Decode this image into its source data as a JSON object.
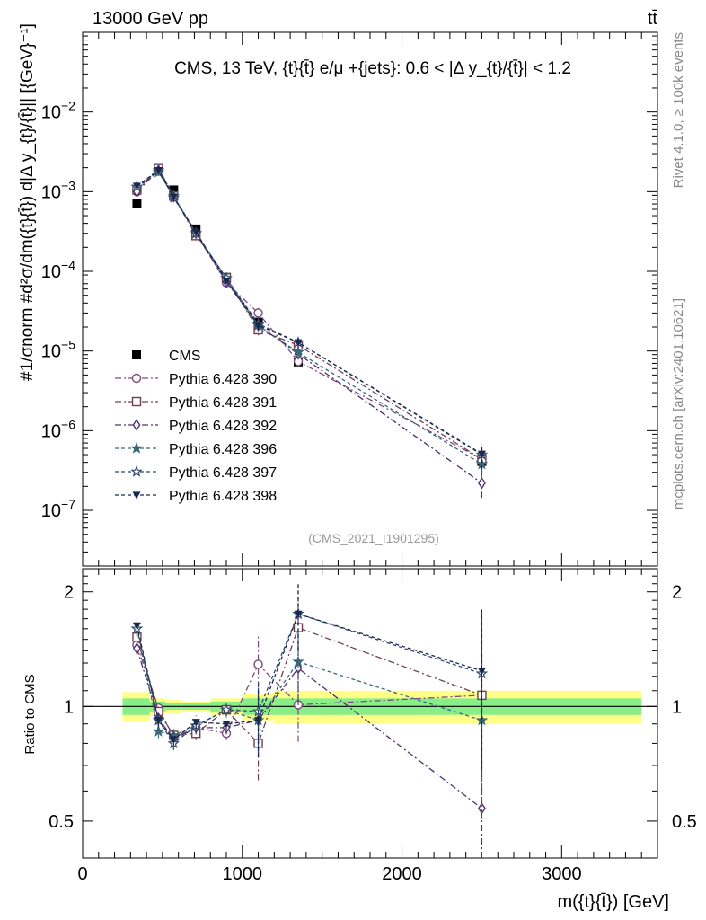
{
  "header": {
    "left": "13000 GeV pp",
    "right": "tt̄"
  },
  "side_labels": {
    "rivet": "Rivet 4.1.0, ≥ 100k events",
    "mcplots": "mcplots.cern.ch [arXiv:2401.10621]"
  },
  "chart_data": [
    {
      "type": "line",
      "title": "CMS, 13 TeV, {t}{t̄} e/μ +{jets}: 0.6 < |Δ y_{t}/{t̄}| < 1.2",
      "ylabel": "#1/σnorm #d²σ/dm({t}{t̄}) d|Δ y_{t}/{t̄}|| [{GeV}⁻¹]",
      "yscale": "log",
      "ylim": [
        2e-08,
        0.1
      ],
      "xlim": [
        0,
        3600
      ],
      "yticks": [
        {
          "v": 1e-07,
          "m": "10",
          "e": "−7"
        },
        {
          "v": 1e-06,
          "m": "10",
          "e": "−6"
        },
        {
          "v": 1e-05,
          "m": "10",
          "e": "−5"
        },
        {
          "v": 0.0001,
          "m": "10",
          "e": "−4"
        },
        {
          "v": 0.001,
          "m": "10",
          "e": "−3"
        },
        {
          "v": 0.01,
          "m": "10",
          "e": "−2"
        }
      ],
      "watermark": "(CMS_2021_I1901295)",
      "x": [
        340,
        475,
        570,
        710,
        900,
        1100,
        1350,
        2500
      ],
      "series": [
        {
          "name": "CMS",
          "color": "#000000",
          "marker": "square-filled",
          "dash": "",
          "values": [
            0.00072,
            0.002,
            0.00105,
            0.00034,
            8.4e-05,
            2.3e-05,
            7.3e-06,
            4.1e-07
          ]
        },
        {
          "name": "Pythia 6.428 390",
          "color": "#7a4a80",
          "marker": "circle-open",
          "dash": "7,3,2,3",
          "values": [
            0.001,
            0.002,
            0.00087,
            0.0003,
            7.2e-05,
            3e-05,
            7.4e-06,
            4.4e-07
          ]
        },
        {
          "name": "Pythia 6.428 391",
          "color": "#704050",
          "marker": "square-open",
          "dash": "7,3,2,3",
          "values": [
            0.00105,
            0.00195,
            0.00088,
            0.00028,
            8.3e-05,
            1.85e-05,
            1.18e-05,
            4.4e-07
          ]
        },
        {
          "name": "Pythia 6.428 392",
          "color": "#503070",
          "marker": "diamond-open",
          "dash": "7,3,2,3",
          "values": [
            0.001,
            0.00185,
            0.00086,
            0.0003,
            7.4e-05,
            2.1e-05,
            9.2e-06,
            2.2e-07
          ]
        },
        {
          "name": "Pythia 6.428 396",
          "color": "#3a6878",
          "marker": "star-filled",
          "dash": "4,3",
          "values": [
            0.00115,
            0.00175,
            0.00088,
            0.0003,
            8.2e-05,
            2.1e-05,
            9.6e-06,
            3.8e-07
          ]
        },
        {
          "name": "Pythia 6.428 397",
          "color": "#304868",
          "marker": "star-open",
          "dash": "4,3",
          "values": [
            0.00115,
            0.00185,
            0.00084,
            0.0003,
            8.2e-05,
            2.2e-05,
            1.28e-05,
            5e-07
          ]
        },
        {
          "name": "Pythia 6.428 398",
          "color": "#182850",
          "marker": "triangle-down-filled",
          "dash": "4,3",
          "values": [
            0.00118,
            0.00185,
            0.00086,
            0.00031,
            7.6e-05,
            2.1e-05,
            1.28e-05,
            5.1e-07
          ]
        }
      ]
    },
    {
      "type": "line",
      "ylabel": "Ratio to CMS",
      "yscale": "log",
      "ylim": [
        0.4,
        2.3
      ],
      "xlim": [
        0,
        3600
      ],
      "yticks": [
        {
          "v": 0.5,
          "label": "0.5"
        },
        {
          "v": 1,
          "label": "1"
        },
        {
          "v": 2,
          "label": "2"
        }
      ],
      "xticks": [
        {
          "v": 0,
          "label": "0"
        },
        {
          "v": 1000,
          "label": "1000"
        },
        {
          "v": 2000,
          "label": "2000"
        },
        {
          "v": 3000,
          "label": "3000"
        }
      ],
      "xlabel": "m({t}{t̄}) [GeV]",
      "bins": [
        250,
        420,
        520,
        620,
        800,
        1000,
        1200,
        1500,
        3500
      ],
      "band_inner": [
        0.05,
        0.03,
        0.02,
        0.02,
        0.03,
        0.05,
        0.05,
        0.05
      ],
      "band_outer": [
        0.09,
        0.05,
        0.04,
        0.03,
        0.05,
        0.08,
        0.1,
        0.1
      ],
      "x": [
        340,
        475,
        570,
        710,
        900,
        1100,
        1350,
        2500
      ],
      "series": [
        {
          "name": "Pythia 6.428 390",
          "values": [
            1.45,
            0.99,
            0.83,
            0.88,
            0.85,
            1.29,
            1.01,
            1.07
          ]
        },
        {
          "name": "Pythia 6.428 391",
          "values": [
            1.52,
            0.97,
            0.84,
            0.85,
            0.98,
            0.8,
            1.61,
            1.07
          ]
        },
        {
          "name": "Pythia 6.428 392",
          "values": [
            1.42,
            0.93,
            0.82,
            0.88,
            0.88,
            0.92,
            1.26,
            0.54
          ]
        },
        {
          "name": "Pythia 6.428 396",
          "values": [
            1.6,
            0.86,
            0.84,
            0.89,
            0.98,
            0.92,
            1.31,
            0.92
          ]
        },
        {
          "name": "Pythia 6.428 397",
          "values": [
            1.6,
            0.92,
            0.8,
            0.89,
            0.98,
            0.97,
            1.75,
            1.22
          ]
        },
        {
          "name": "Pythia 6.428 398",
          "values": [
            1.63,
            0.92,
            0.82,
            0.91,
            0.9,
            0.92,
            1.75,
            1.24
          ]
        }
      ]
    }
  ]
}
